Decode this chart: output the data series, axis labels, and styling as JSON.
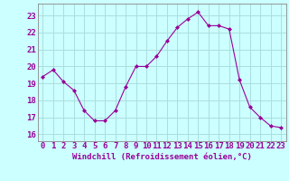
{
  "x": [
    0,
    1,
    2,
    3,
    4,
    5,
    6,
    7,
    8,
    9,
    10,
    11,
    12,
    13,
    14,
    15,
    16,
    17,
    18,
    19,
    20,
    21,
    22,
    23
  ],
  "y": [
    19.4,
    19.8,
    19.1,
    18.6,
    17.4,
    16.8,
    16.8,
    17.4,
    18.8,
    20.0,
    20.0,
    20.6,
    21.5,
    22.3,
    22.8,
    23.2,
    22.4,
    22.4,
    22.2,
    19.2,
    17.6,
    17.0,
    16.5,
    16.4
  ],
  "line_color": "#990099",
  "marker_color": "#990099",
  "bg_color": "#ccffff",
  "grid_color": "#aadddd",
  "xlabel": "Windchill (Refroidissement éolien,°C)",
  "ylabel_ticks": [
    16,
    17,
    18,
    19,
    20,
    21,
    22,
    23
  ],
  "xlim": [
    -0.5,
    23.5
  ],
  "ylim": [
    15.6,
    23.7
  ],
  "tick_color": "#990099",
  "label_color": "#990099",
  "xlabel_fontsize": 6.5,
  "tick_fontsize": 6.5
}
